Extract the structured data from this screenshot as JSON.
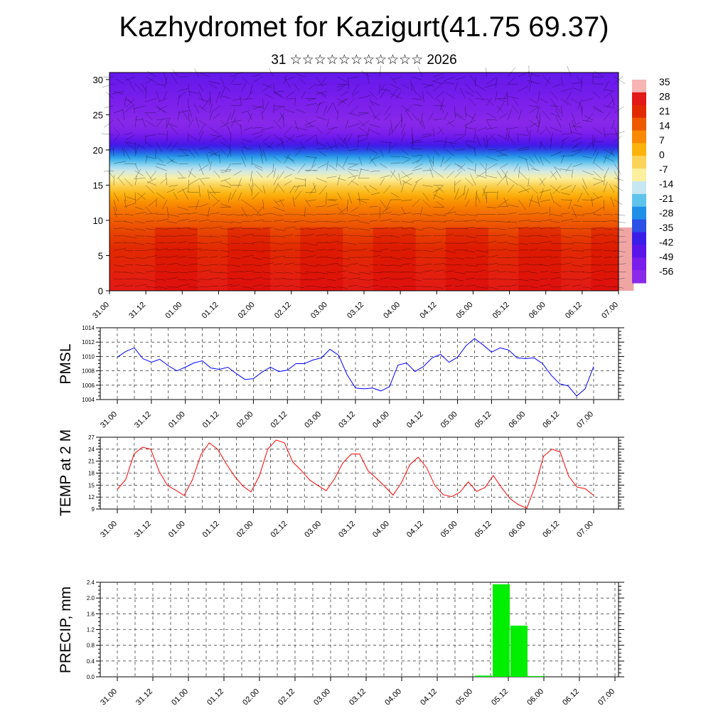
{
  "header": {
    "title": "Kazhydromet for Kazigurt(41.75 69.37)",
    "subtitle": "31 ☆☆☆☆☆☆☆☆☆☆☆ 2026"
  },
  "time_labels": [
    "31.00",
    "31.12",
    "01.00",
    "01.12",
    "02.00",
    "02.12",
    "03.00",
    "03.12",
    "04.00",
    "04.12",
    "05.00",
    "05.12",
    "06.00",
    "06.12",
    "07.00"
  ],
  "colors": {
    "pmsl_line": "#0000ff",
    "temp_line": "#ff0000",
    "precip_bar": "#00ee00"
  },
  "chart_data": [
    {
      "type": "heatmap",
      "name": "cross-section",
      "y_ticks": [
        0,
        5,
        10,
        15,
        20,
        25,
        30
      ],
      "ylim": [
        0,
        31
      ],
      "colorbar": {
        "labels": [
          "35",
          "28",
          "21",
          "14",
          "7",
          "0",
          "-7",
          "-14",
          "-21",
          "-28",
          "-35",
          "-42",
          "-49",
          "-56"
        ],
        "colors": [
          "#f6b4b4",
          "#e31818",
          "#e22a00",
          "#ee5a00",
          "#f98a00",
          "#fbb30c",
          "#fad45a",
          "#fbf0a0",
          "#c6e6f2",
          "#5fc4ec",
          "#1e90e8",
          "#2c4fe6",
          "#3a1ee8",
          "#5a16ea",
          "#7a1eec",
          "#8a2ae8"
        ]
      },
      "profile_levels": [
        0,
        3,
        6,
        8,
        10,
        12,
        13,
        14,
        15,
        16,
        17,
        18,
        19,
        20,
        21,
        22,
        23,
        24,
        25,
        26,
        27,
        28,
        29,
        31
      ],
      "profile_temps": [
        28,
        25,
        22,
        19,
        15,
        10,
        6,
        1,
        -4,
        -11,
        -16,
        -22,
        -29,
        -38,
        -48,
        -55,
        -60,
        -62,
        -60,
        -58,
        -57,
        -55,
        -54,
        -52
      ]
    },
    {
      "type": "line",
      "name": "PMSL",
      "ylabel": "PMSL",
      "ylim": [
        1004,
        1014
      ],
      "y_ticks": [
        1004,
        1006,
        1008,
        1010,
        1012,
        1014
      ],
      "values": [
        1009.9,
        1010.7,
        1011.2,
        1009.7,
        1009.2,
        1009.6,
        1008.7,
        1008.0,
        1008.5,
        1009.1,
        1009.4,
        1008.4,
        1008.2,
        1008.5,
        1007.6,
        1006.8,
        1006.9,
        1007.8,
        1008.5,
        1007.9,
        1008.1,
        1009.0,
        1009.0,
        1009.5,
        1009.8,
        1011.0,
        1010.2,
        1007.5,
        1005.6,
        1005.5,
        1005.6,
        1005.2,
        1005.8,
        1008.8,
        1009.1,
        1007.9,
        1008.6,
        1009.8,
        1010.3,
        1009.2,
        1009.9,
        1011.5,
        1012.5,
        1011.6,
        1010.6,
        1011.2,
        1010.9,
        1009.8,
        1009.7,
        1009.8,
        1009.0,
        1007.4,
        1006.2,
        1005.9,
        1004.5,
        1005.5,
        1008.6
      ]
    },
    {
      "type": "line",
      "name": "TEMP",
      "ylabel": "TEMP at 2 M",
      "ylim": [
        9,
        27
      ],
      "y_ticks": [
        9,
        12,
        15,
        18,
        21,
        24,
        27
      ],
      "values": [
        13.9,
        16.4,
        22.8,
        24.5,
        24.0,
        18.5,
        14.9,
        13.7,
        12.4,
        16.4,
        22.6,
        25.6,
        24.0,
        20.5,
        17.3,
        14.8,
        13.3,
        17.3,
        24.0,
        26.3,
        25.6,
        20.8,
        18.7,
        16.3,
        14.9,
        13.6,
        16.6,
        20.6,
        22.8,
        22.8,
        18.6,
        16.7,
        14.7,
        12.5,
        15.6,
        20.1,
        22.0,
        19.4,
        14.9,
        12.6,
        12.1,
        13.2,
        15.8,
        13.4,
        14.4,
        17.4,
        14.3,
        11.6,
        10.1,
        9.2,
        14.7,
        22.2,
        24.0,
        23.3,
        17.3,
        14.5,
        14.1,
        12.4
      ]
    },
    {
      "type": "bar",
      "name": "PRECIP",
      "ylabel": "PRECIP, mm",
      "ylim": [
        0,
        2.4
      ],
      "y_ticks": [
        "0.0",
        "0.4",
        "0.8",
        "1.2",
        "1.6",
        "2.0",
        "2.4"
      ],
      "bars": [
        {
          "t": 60.0,
          "value": 0.03
        },
        {
          "t": 63.0,
          "value": 2.35
        },
        {
          "t": 66.0,
          "value": 1.3
        },
        {
          "t": 69.0,
          "value": 0.02
        }
      ]
    }
  ]
}
